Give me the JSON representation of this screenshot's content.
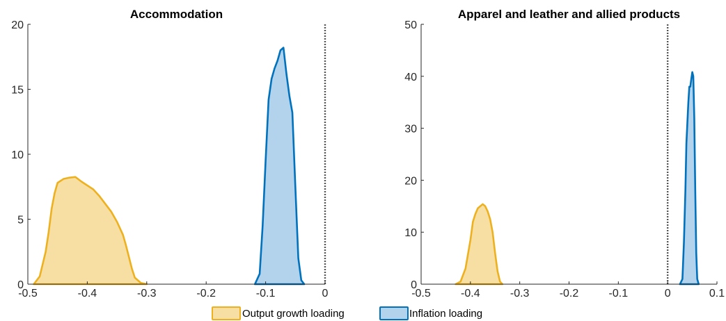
{
  "chart_data": [
    {
      "type": "area",
      "title": "Accommodation",
      "xlabel": "",
      "ylabel": "",
      "xlim": [
        -0.5,
        0
      ],
      "ylim": [
        0,
        20
      ],
      "xticks": [
        -0.5,
        -0.4,
        -0.3,
        -0.2,
        -0.1,
        0
      ],
      "xtick_labels": [
        "-0.5",
        "-0.4",
        "-0.3",
        "-0.2",
        "-0.1",
        "0"
      ],
      "yticks": [
        0,
        5,
        10,
        15,
        20
      ],
      "ytick_labels": [
        "0",
        "5",
        "10",
        "15",
        "20"
      ],
      "reference_line_x": 0,
      "grid": false,
      "series": [
        {
          "name": "Output growth loading",
          "x": [
            -0.49,
            -0.48,
            -0.47,
            -0.465,
            -0.46,
            -0.455,
            -0.45,
            -0.44,
            -0.43,
            -0.42,
            -0.41,
            -0.4,
            -0.39,
            -0.38,
            -0.37,
            -0.36,
            -0.35,
            -0.34,
            -0.335,
            -0.33,
            -0.325,
            -0.32,
            -0.31,
            -0.3
          ],
          "y": [
            0,
            0.6,
            2.5,
            4.0,
            5.8,
            7.0,
            7.8,
            8.1,
            8.2,
            8.25,
            7.9,
            7.6,
            7.3,
            6.8,
            6.2,
            5.6,
            4.8,
            3.8,
            3.0,
            2.1,
            1.2,
            0.5,
            0.1,
            0
          ]
        },
        {
          "name": "Inflation loading",
          "x": [
            -0.118,
            -0.11,
            -0.105,
            -0.1,
            -0.095,
            -0.09,
            -0.085,
            -0.08,
            -0.075,
            -0.07,
            -0.065,
            -0.06,
            -0.055,
            -0.05,
            -0.045,
            -0.04,
            -0.035
          ],
          "y": [
            0,
            0.8,
            4.5,
            9.5,
            14.2,
            15.8,
            16.6,
            17.2,
            18.0,
            18.2,
            16.2,
            14.5,
            13.2,
            7.5,
            2.0,
            0.3,
            0
          ]
        }
      ]
    },
    {
      "type": "area",
      "title": "Apparel and leather and allied products",
      "xlabel": "",
      "ylabel": "",
      "xlim": [
        -0.5,
        0.1
      ],
      "ylim": [
        0,
        50
      ],
      "xticks": [
        -0.5,
        -0.4,
        -0.3,
        -0.2,
        -0.1,
        0,
        0.1
      ],
      "xtick_labels": [
        "-0.5",
        "-0.4",
        "-0.3",
        "-0.2",
        "-0.1",
        "0",
        "0.1"
      ],
      "yticks": [
        0,
        10,
        20,
        30,
        40,
        50
      ],
      "ytick_labels": [
        "0",
        "10",
        "20",
        "30",
        "40",
        "50"
      ],
      "reference_line_x": 0,
      "grid": false,
      "series": [
        {
          "name": "Output growth loading",
          "x": [
            -0.43,
            -0.42,
            -0.41,
            -0.4,
            -0.395,
            -0.39,
            -0.385,
            -0.38,
            -0.375,
            -0.37,
            -0.365,
            -0.36,
            -0.355,
            -0.35,
            -0.345,
            -0.34,
            -0.335
          ],
          "y": [
            0,
            0.5,
            3.0,
            8.5,
            12.0,
            13.5,
            14.6,
            15.0,
            15.4,
            15.0,
            14.0,
            12.5,
            10.0,
            6.0,
            2.5,
            0.5,
            0
          ]
        },
        {
          "name": "Inflation loading",
          "x": [
            0.025,
            0.03,
            0.033,
            0.036,
            0.038,
            0.04,
            0.042,
            0.044,
            0.046,
            0.048,
            0.05,
            0.052,
            0.054,
            0.056,
            0.058,
            0.06,
            0.063
          ],
          "y": [
            0,
            1.0,
            8.0,
            18.0,
            27.0,
            31.0,
            35.0,
            38.0,
            38.0,
            39.5,
            40.8,
            40.0,
            32.0,
            18.0,
            6.0,
            1.0,
            0
          ]
        }
      ]
    }
  ],
  "legend": {
    "position": "bottom-center",
    "items": [
      {
        "label": "Output growth loading",
        "fill": "#f7dfa3",
        "stroke": "#edb120"
      },
      {
        "label": "Inflation loading",
        "fill": "#b3d3ec",
        "stroke": "#0072bd"
      }
    ]
  },
  "colors": {
    "output_fill": "#f7dfa3",
    "output_stroke": "#edb120",
    "inflation_fill": "#b3d3ec",
    "inflation_stroke": "#0072bd",
    "axis": "#262626",
    "reference_line": "#555555"
  }
}
